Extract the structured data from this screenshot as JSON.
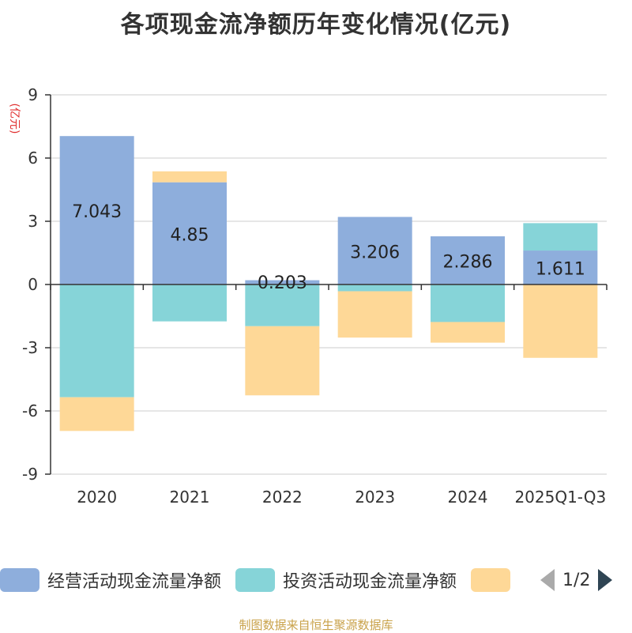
{
  "chart_data": {
    "type": "bar",
    "stacked": true,
    "title": "各项现金流净额历年变化情况(亿元)",
    "ylabel": "(亿元)",
    "ylim": [
      -9,
      9
    ],
    "yticks": [
      "9",
      "6",
      "3",
      "0",
      "-3",
      "-6",
      "-9"
    ],
    "ytick_values": [
      9,
      6,
      3,
      0,
      -3,
      -6,
      -9
    ],
    "categories": [
      "2020",
      "2021",
      "2022",
      "2023",
      "2024",
      "2025Q1-Q3"
    ],
    "series": [
      {
        "name": "经营活动现金流量净额",
        "color": "#8eaedc",
        "values": [
          7.043,
          4.85,
          0.203,
          3.206,
          2.286,
          1.611
        ],
        "labels": [
          "7.043",
          "4.85",
          "0.203",
          "3.206",
          "2.286",
          "1.611"
        ]
      },
      {
        "name": "投资活动现金流量净额",
        "color": "#86d4d8",
        "values": [
          -5.35,
          -1.75,
          -1.98,
          -0.32,
          -1.78,
          1.3
        ]
      },
      {
        "name": "",
        "color": "#fed897",
        "values": [
          -1.6,
          0.52,
          -3.28,
          -2.2,
          -0.98,
          -3.48
        ]
      }
    ],
    "legend_position": "bottom",
    "grid": true
  },
  "legend": {
    "items": [
      "经营活动现金流量净额",
      "投资活动现金流量净额",
      ""
    ],
    "page": "1/2"
  },
  "source": "制图数据来自恒生聚源数据库"
}
